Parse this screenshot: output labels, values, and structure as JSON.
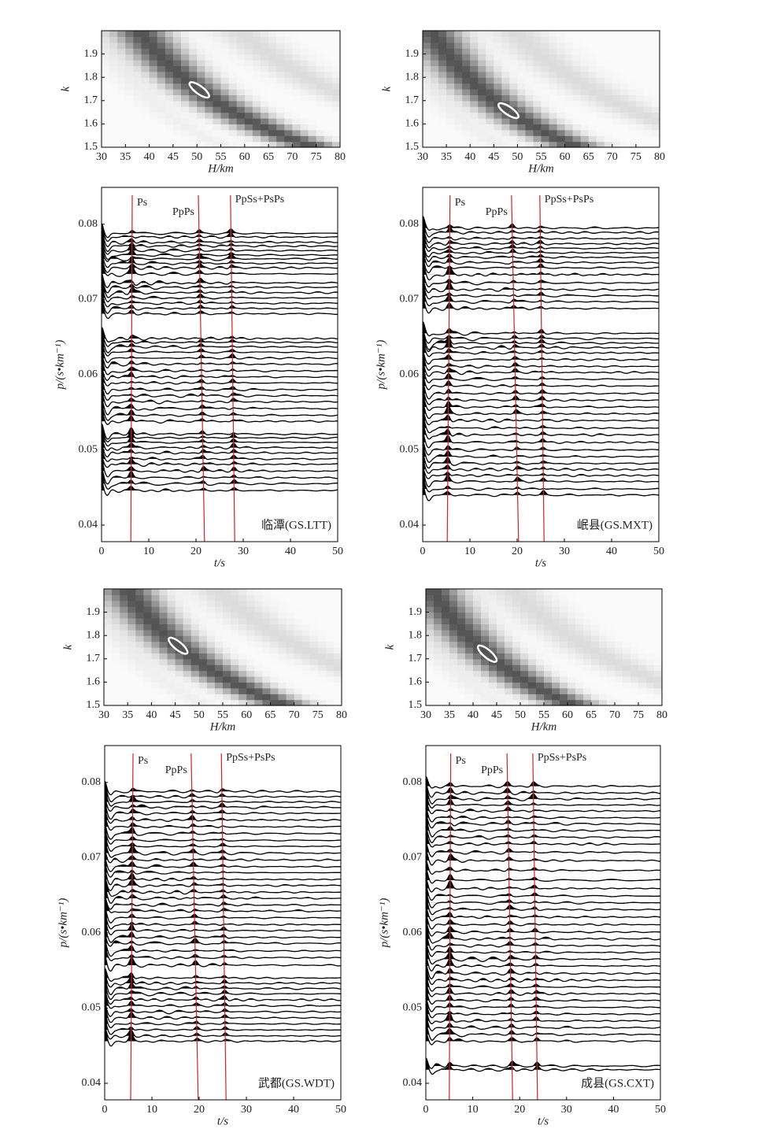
{
  "chart_data": [
    {
      "type": "hk",
      "xlim": [
        30,
        80
      ],
      "ylim": [
        1.5,
        2.0
      ],
      "xticks": [
        30,
        35,
        40,
        45,
        50,
        55,
        60,
        65,
        70,
        75,
        80
      ],
      "yticks": [
        1.5,
        1.6,
        1.7,
        1.8,
        1.9
      ],
      "xlabel": "H/km",
      "ylabel": "k",
      "H": 50.5,
      "k": 1.746
    },
    {
      "type": "rf",
      "xlim": [
        0,
        50
      ],
      "ylim": [
        0.0378,
        0.0849
      ],
      "xticks": [
        0,
        10,
        20,
        30,
        40,
        50
      ],
      "yticks": [
        0.04,
        0.05,
        0.06,
        0.07,
        0.08
      ],
      "xlabel": "t/s",
      "ylabel": "p/(s•km⁻¹)",
      "annotation": "临潭(GS.LTT)",
      "phases": [
        {
          "name": "Ps",
          "t_top": 6.5,
          "t_bottom": 6.2
        },
        {
          "name": "PpPs",
          "t_top": 20.5,
          "t_bottom": 21.8
        },
        {
          "name": "PpSs+PsPs",
          "t_top": 27.3,
          "t_bottom": 28.2
        }
      ],
      "traces": [
        0.0788,
        0.0783,
        0.0776,
        0.0771,
        0.0765,
        0.0759,
        0.0754,
        0.0748,
        0.0742,
        0.0734,
        0.0722,
        0.0716,
        0.0709,
        0.0702,
        0.0695,
        0.0688,
        0.0681,
        0.0648,
        0.0643,
        0.0637,
        0.063,
        0.0622,
        0.0614,
        0.0605,
        0.0597,
        0.0589,
        0.058,
        0.0572,
        0.0564,
        0.0555,
        0.0546,
        0.0538,
        0.0521,
        0.0516,
        0.051,
        0.0503,
        0.0496,
        0.0488,
        0.0481,
        0.0472,
        0.0463,
        0.0455,
        0.0446
      ]
    },
    {
      "type": "hk",
      "xlim": [
        30,
        80
      ],
      "ylim": [
        1.5,
        2.0
      ],
      "xticks": [
        30,
        35,
        40,
        45,
        50,
        55,
        60,
        65,
        70,
        75,
        80
      ],
      "yticks": [
        1.5,
        1.6,
        1.7,
        1.8,
        1.9
      ],
      "xlabel": "H/km",
      "ylabel": "k",
      "H": 48.1,
      "k": 1.657
    },
    {
      "type": "rf",
      "xlim": [
        0,
        50
      ],
      "ylim": [
        0.0378,
        0.0849
      ],
      "xticks": [
        0,
        10,
        20,
        30,
        40,
        50
      ],
      "yticks": [
        0.04,
        0.05,
        0.06,
        0.07,
        0.08
      ],
      "xlabel": "t/s",
      "ylabel": "p/(s•km⁻¹)",
      "annotation": "岷县(GS.MXT)",
      "phases": [
        {
          "name": "Ps",
          "t_top": 5.8,
          "t_bottom": 5.2
        },
        {
          "name": "PpPs",
          "t_top": 18.8,
          "t_bottom": 20.3
        },
        {
          "name": "PpSs+PsPs",
          "t_top": 24.8,
          "t_bottom": 25.7
        }
      ],
      "traces": [
        0.0795,
        0.0789,
        0.0781,
        0.0774,
        0.0768,
        0.0762,
        0.0756,
        0.0749,
        0.0742,
        0.0733,
        0.0722,
        0.0713,
        0.0705,
        0.0697,
        0.0688,
        0.0655,
        0.0648,
        0.0642,
        0.0636,
        0.0629,
        0.062,
        0.0611,
        0.0603,
        0.0594,
        0.0585,
        0.0575,
        0.0566,
        0.0557,
        0.0548,
        0.0539,
        0.0529,
        0.052,
        0.051,
        0.05,
        0.0491,
        0.0482,
        0.0474,
        0.0466,
        0.0458,
        0.0448,
        0.044
      ]
    },
    {
      "type": "hk",
      "xlim": [
        30,
        80
      ],
      "ylim": [
        1.5,
        2.0
      ],
      "xticks": [
        30,
        35,
        40,
        45,
        50,
        55,
        60,
        65,
        70,
        75,
        80
      ],
      "yticks": [
        1.5,
        1.6,
        1.7,
        1.8,
        1.9
      ],
      "xlabel": "H/km",
      "ylabel": "k",
      "H": 45.6,
      "k": 1.756
    },
    {
      "type": "rf",
      "xlim": [
        0,
        50
      ],
      "ylim": [
        0.0378,
        0.0849
      ],
      "xticks": [
        0,
        10,
        20,
        30,
        40,
        50
      ],
      "yticks": [
        0.04,
        0.05,
        0.06,
        0.07,
        0.08
      ],
      "xlabel": "t/s",
      "ylabel": "p/(s•km⁻¹)",
      "annotation": "武都(GS.WDT)",
      "phases": [
        {
          "name": "Ps",
          "t_top": 6.0,
          "t_bottom": 5.5
        },
        {
          "name": "PpPs",
          "t_top": 18.3,
          "t_bottom": 19.8
        },
        {
          "name": "PpSs+PsPs",
          "t_top": 24.7,
          "t_bottom": 25.7
        }
      ],
      "traces": [
        0.0788,
        0.0781,
        0.0774,
        0.0767,
        0.0759,
        0.075,
        0.0741,
        0.0732,
        0.0723,
        0.0715,
        0.0706,
        0.0697,
        0.0688,
        0.068,
        0.0671,
        0.0663,
        0.0654,
        0.0646,
        0.0637,
        0.0629,
        0.062,
        0.0611,
        0.0603,
        0.0594,
        0.0586,
        0.0576,
        0.0567,
        0.0557,
        0.054,
        0.0533,
        0.0526,
        0.0519,
        0.0511,
        0.0503,
        0.0495,
        0.0487,
        0.0479,
        0.0471,
        0.0463,
        0.0456
      ]
    },
    {
      "type": "hk",
      "xlim": [
        30,
        80
      ],
      "ylim": [
        1.5,
        2.0
      ],
      "xticks": [
        30,
        35,
        40,
        45,
        50,
        55,
        60,
        65,
        70,
        75,
        80
      ],
      "yticks": [
        1.5,
        1.6,
        1.7,
        1.8,
        1.9
      ],
      "xlabel": "H/km",
      "ylabel": "k",
      "H": 43.0,
      "k": 1.722
    },
    {
      "type": "rf",
      "xlim": [
        0,
        50
      ],
      "ylim": [
        0.0378,
        0.0849
      ],
      "xticks": [
        0,
        10,
        20,
        30,
        40,
        50
      ],
      "yticks": [
        0.04,
        0.05,
        0.06,
        0.07,
        0.08
      ],
      "xlabel": "t/s",
      "ylabel": "p/(s•km⁻¹)",
      "annotation": "成县(GS.CXT)",
      "phases": [
        {
          "name": "Ps",
          "t_top": 5.3,
          "t_bottom": 5.0
        },
        {
          "name": "PpPs",
          "t_top": 17.3,
          "t_bottom": 18.5
        },
        {
          "name": "PpSs+PsPs",
          "t_top": 22.8,
          "t_bottom": 23.8
        }
      ],
      "traces": [
        0.0795,
        0.0786,
        0.0778,
        0.077,
        0.0762,
        0.0753,
        0.0745,
        0.0736,
        0.0727,
        0.0718,
        0.0707,
        0.0696,
        0.0683,
        0.067,
        0.0659,
        0.0649,
        0.064,
        0.0631,
        0.0621,
        0.0611,
        0.0601,
        0.0592,
        0.0583,
        0.0574,
        0.0565,
        0.0556,
        0.0546,
        0.0537,
        0.0528,
        0.0519,
        0.051,
        0.0501,
        0.0492,
        0.0483,
        0.0474,
        0.0465,
        0.0456,
        0.0423,
        0.0418
      ]
    }
  ]
}
